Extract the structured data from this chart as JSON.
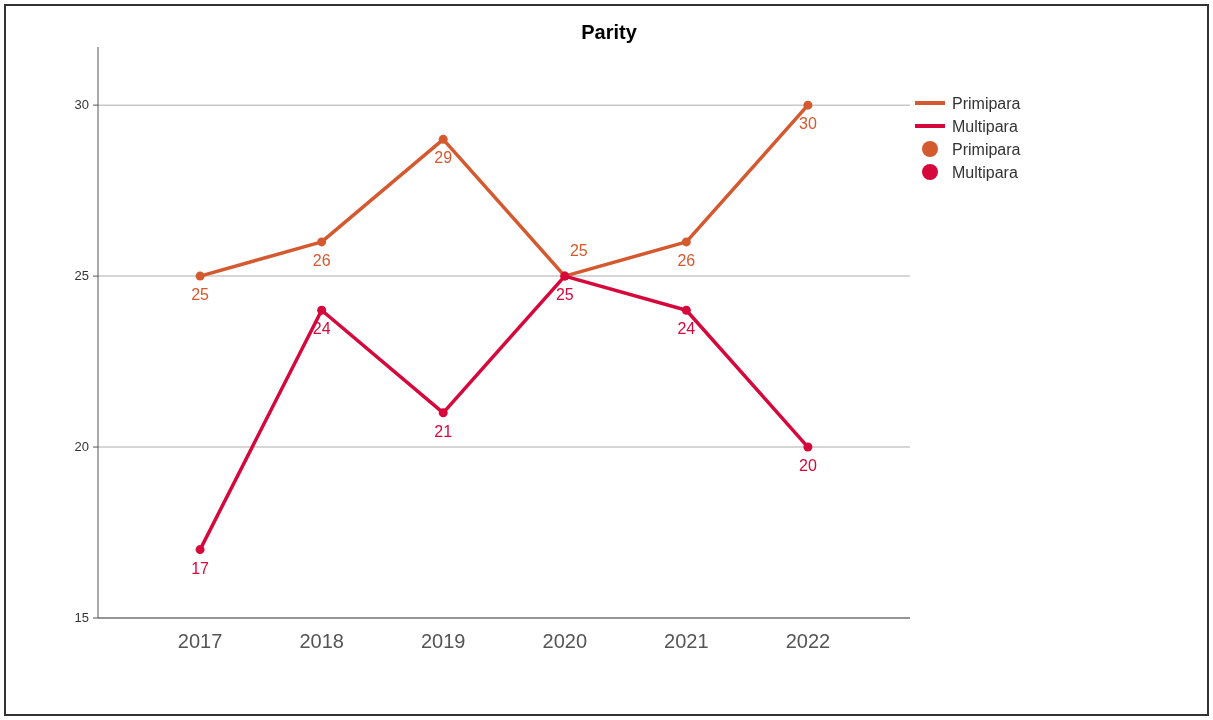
{
  "chart_data": {
    "type": "line",
    "title": "Parity",
    "categories": [
      "2017",
      "2018",
      "2019",
      "2020",
      "2021",
      "2022"
    ],
    "series": [
      {
        "name": "Primipara",
        "color": "#d4592f",
        "values": [
          25,
          26,
          29,
          25,
          26,
          30
        ]
      },
      {
        "name": "Multipara",
        "color": "#d6073b",
        "values": [
          17,
          24,
          21,
          25,
          24,
          20
        ]
      }
    ],
    "ylim": [
      15,
      31.7
    ],
    "yticks": [
      15,
      20,
      25,
      30
    ],
    "grid": "y",
    "legend": "right",
    "marker": "circle",
    "line_style": "solid",
    "data_labels": true
  }
}
